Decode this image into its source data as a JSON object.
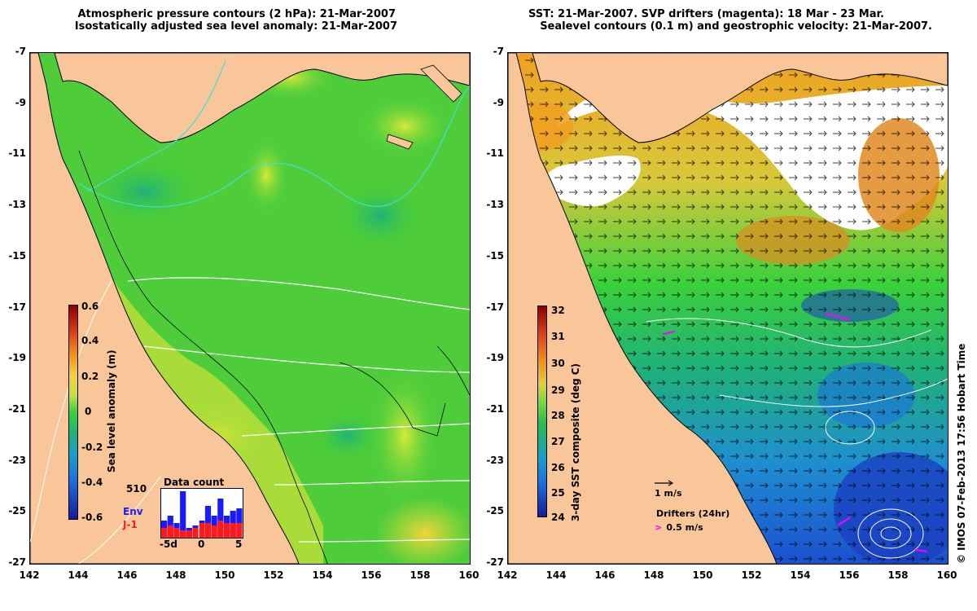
{
  "left_panel": {
    "title_line1": "Atmospheric pressure contours (2 hPa): 21-Mar-2007",
    "title_line2": "Isostatically adjusted sea level anomaly: 21-Mar-2007",
    "colorbar_label": "Sea level anomaly (m)",
    "colorbar_ticks": [
      "0.6",
      "0.4",
      "0.2",
      "0",
      "-0.2",
      "-0.4",
      "-0.6"
    ],
    "data_count_title": "Data count",
    "data_count_max": "510",
    "legend_env": "Env",
    "legend_j1": "J-1",
    "hist_xticks": [
      "-5d",
      "0",
      "5"
    ],
    "hist_env": [
      0.35,
      0.45,
      0.3,
      0.95,
      0.2,
      0.25,
      0.35,
      0.65,
      0.45,
      0.8,
      0.45,
      0.55,
      0.6
    ],
    "hist_j1": [
      0.2,
      0.25,
      0.2,
      0.15,
      0.15,
      0.2,
      0.3,
      0.3,
      0.25,
      0.35,
      0.3,
      0.3,
      0.3
    ],
    "colors": {
      "env": "#1a1aff",
      "j1": "#ff1a1a"
    }
  },
  "right_panel": {
    "title_line1": "SST: 21-Mar-2007. SVP drifters (magenta): 18 Mar - 23 Mar.",
    "title_line2": "Sealevel contours (0.1 m) and geostrophic velocity: 21-Mar-2007.",
    "colorbar_label": "3-day SST composite (deg C)",
    "colorbar_ticks": [
      "32",
      "31",
      "30",
      "29",
      "28",
      "27",
      "26",
      "25",
      "24"
    ],
    "velocity_scale_label": "1 m/s",
    "drifters_label": "Drifters (24hr)",
    "drifters_speed": "0.5 m/s",
    "drifter_color": "#ff00ff"
  },
  "axes": {
    "y_ticks": [
      "-7",
      "-9",
      "-11",
      "-13",
      "-15",
      "-17",
      "-19",
      "-21",
      "-23",
      "-25",
      "-27"
    ],
    "x_ticks": [
      "142",
      "144",
      "146",
      "148",
      "150",
      "152",
      "154",
      "156",
      "158",
      "160"
    ],
    "lat_range": [
      -27,
      -7
    ],
    "lon_range": [
      142,
      160
    ]
  },
  "credit": "© IMOS 07-Feb-2013 17:56 Hobart Time",
  "colors": {
    "land": "#f9c69a",
    "ocean_sla": "#3bd13b",
    "ocean_sst_warm": "#f0a020",
    "ocean_sst_cool": "#1f8fd0"
  }
}
